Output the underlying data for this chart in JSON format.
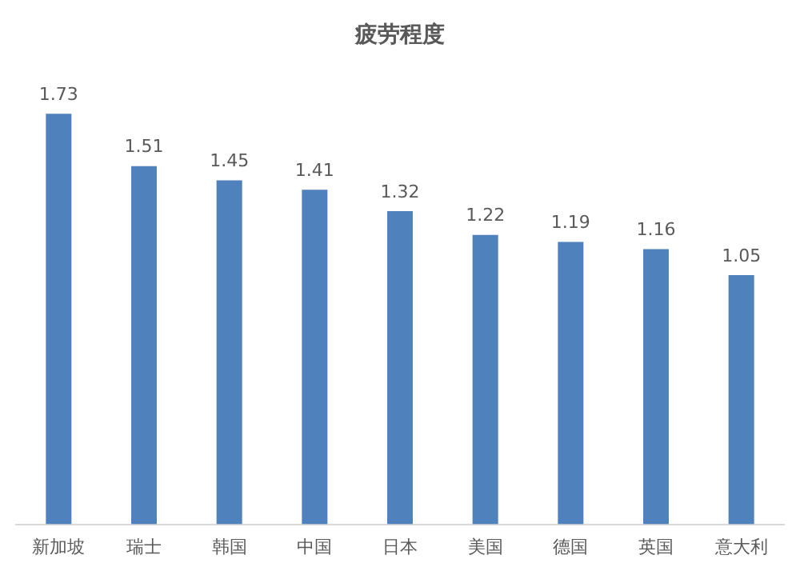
{
  "chart_data": {
    "type": "bar",
    "title": "疲劳程度",
    "categories": [
      "新加坡",
      "瑞士",
      "韩国",
      "中国",
      "日本",
      "美国",
      "德国",
      "英国",
      "意大利"
    ],
    "values": [
      1.73,
      1.51,
      1.45,
      1.41,
      1.32,
      1.22,
      1.19,
      1.16,
      1.05
    ],
    "color": "#4f81bd",
    "data_labels": true,
    "grid": false,
    "legend": false
  }
}
